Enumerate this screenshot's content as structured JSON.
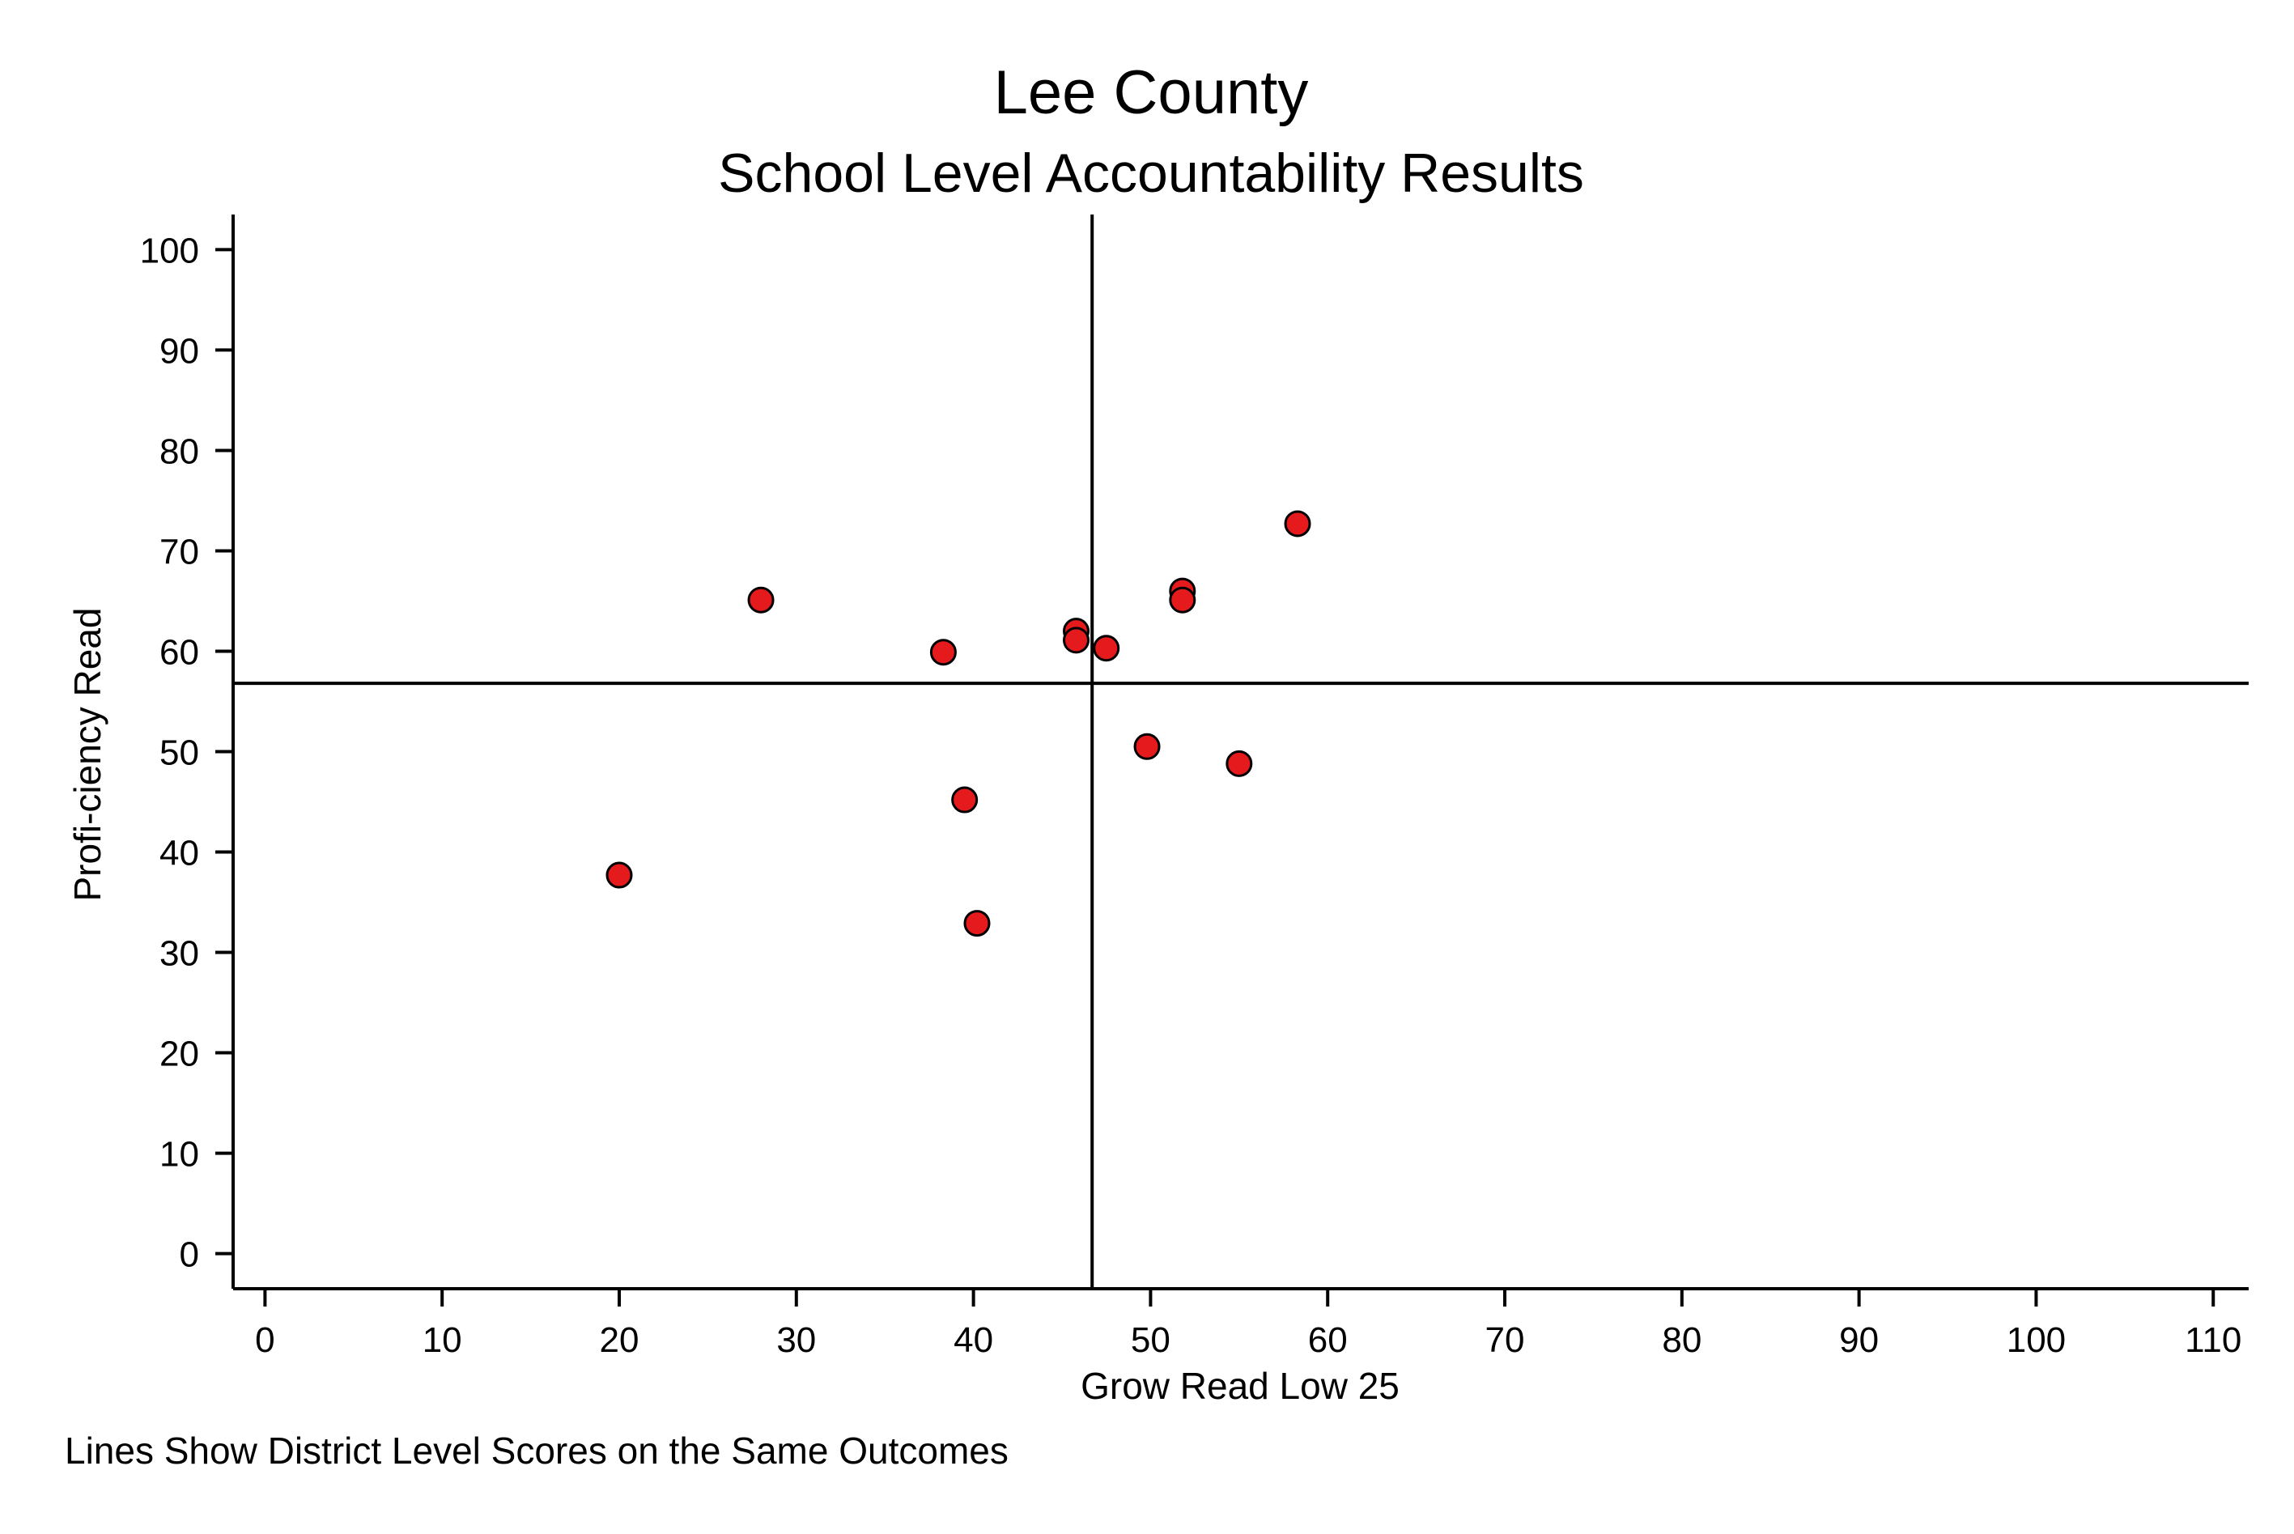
{
  "chart_data": {
    "type": "scatter",
    "title": "Lee County",
    "subtitle": "School Level Accountability Results",
    "xlabel": "Grow Read Low 25",
    "ylabel": "Profi-ciency Read",
    "note": "Lines Show District Level Scores on the Same Outcomes",
    "xlim": [
      -1.8,
      112
    ],
    "ylim": [
      -3.5,
      103.5
    ],
    "xticks": [
      0,
      10,
      20,
      30,
      40,
      50,
      60,
      70,
      80,
      90,
      100,
      110
    ],
    "yticks": [
      0,
      10,
      20,
      30,
      40,
      50,
      60,
      70,
      80,
      90,
      100
    ],
    "reference_lines": {
      "x": 46.7,
      "y": 56.8
    },
    "grid": false,
    "marker_color": "#e41a1c",
    "marker_edge_color": "#000000",
    "points": [
      {
        "x": 20.0,
        "y": 37.7
      },
      {
        "x": 28.0,
        "y": 65.1
      },
      {
        "x": 38.3,
        "y": 59.9
      },
      {
        "x": 39.5,
        "y": 45.2
      },
      {
        "x": 40.2,
        "y": 32.9
      },
      {
        "x": 45.8,
        "y": 62.0
      },
      {
        "x": 45.8,
        "y": 61.1
      },
      {
        "x": 47.5,
        "y": 60.3
      },
      {
        "x": 49.8,
        "y": 50.5
      },
      {
        "x": 51.8,
        "y": 66.0
      },
      {
        "x": 51.8,
        "y": 65.1
      },
      {
        "x": 55.0,
        "y": 48.8
      },
      {
        "x": 58.3,
        "y": 72.7
      }
    ]
  }
}
